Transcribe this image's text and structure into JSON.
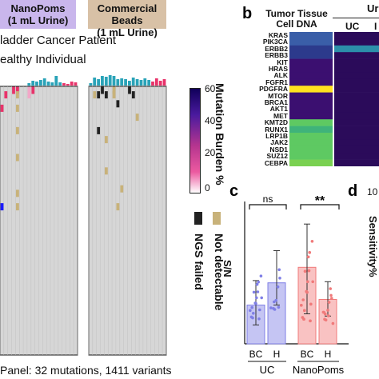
{
  "panel_a": {
    "header_left": [
      "NanoPoms",
      "(1 mL Urine)"
    ],
    "header_right": [
      "Commercial Beads",
      "(1 mL Urine)"
    ],
    "legend_patient": "ladder Cancer Patient",
    "legend_healthy": "ealthy Individual",
    "colorbar_label": "Mutation Burden %",
    "colorbar_ticks": [
      "60",
      "40",
      "20",
      "0"
    ],
    "key_ngs_failed": "NGS failed",
    "key_not_detectable": "Not detectable",
    "footer": "Panel: 32 mutations, 1411 variants",
    "colors": {
      "patient": "#e8336a",
      "healthy": "#2aa3b8",
      "failed": "#222222",
      "not_detectable": "#c8b27a",
      "empty": "#d6d6d6"
    }
  },
  "panel_b": {
    "letter": "b",
    "title": [
      "Tumor Tissue",
      "Cell DNA"
    ],
    "top_right_partial": "Ur",
    "col_label_uc": "UC",
    "col_label_partial": "I",
    "genes": [
      "KRAS",
      "PIK3CA",
      "ERBB2",
      "ERBB3",
      "KIT",
      "HRAS",
      "ALK",
      "FGFR1",
      "PDGFRA",
      "MTOR",
      "BRCA1",
      "AKT1",
      "MET",
      "KMT2D",
      "RUNX1",
      "LRP1B",
      "JAK2",
      "NSD1",
      "SUZ12",
      "CEBPA"
    ]
  },
  "panel_c": {
    "letter": "c",
    "ylabel": "S/N",
    "sig_left": "ns",
    "sig_right": "**",
    "x_ticks": [
      "BC",
      "H",
      "BC",
      "H"
    ],
    "group_labels": [
      "UC",
      "NanoPoms"
    ]
  },
  "panel_d": {
    "letter": "d",
    "ylabel": "Sensitivity%",
    "tick_partial": "10"
  },
  "chart_data": {
    "type": "bar",
    "categories": [
      "UC BC",
      "UC H",
      "NanoPoms BC",
      "NanoPoms H"
    ],
    "values": [
      1.75,
      2.75,
      3.45,
      2.0
    ],
    "error_low": [
      0.85,
      1.75,
      1.35,
      1.25
    ],
    "error_high": [
      2.85,
      4.2,
      5.4,
      2.8
    ],
    "xlabel": "",
    "ylabel": "S/N",
    "colors": [
      "#7f7fe6",
      "#7f7fe6",
      "#f07a7a",
      "#f07a7a"
    ]
  }
}
